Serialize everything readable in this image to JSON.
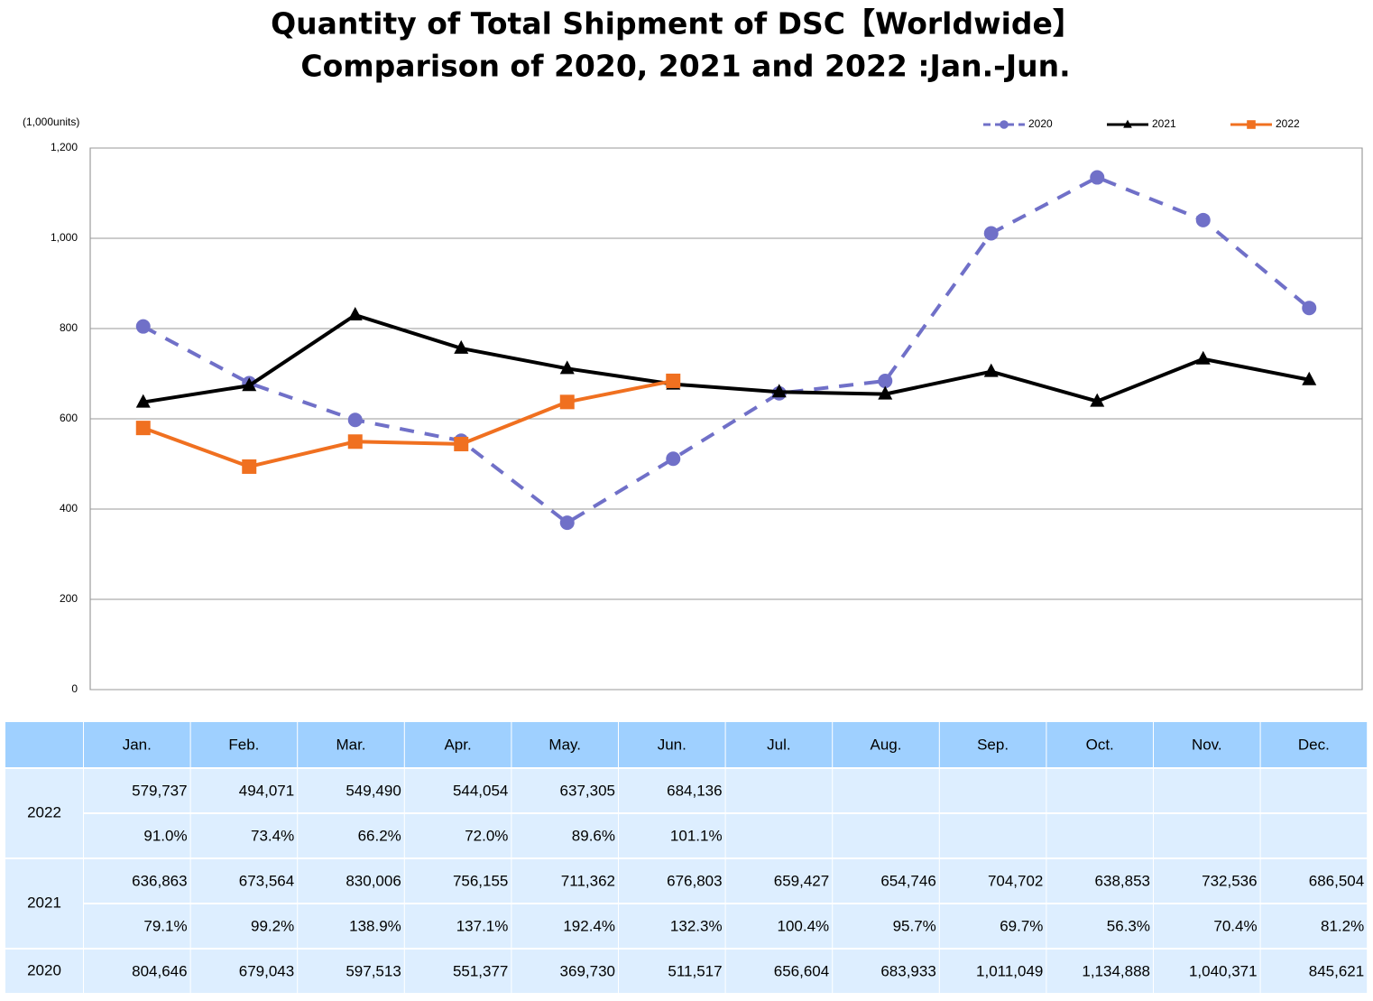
{
  "chart_data": {
    "type": "line",
    "title": "Quantity of Total Shipment of DSC【Worldwide】",
    "subtitle": "Comparison of 2020, 2021 and 2022 :Jan.-Jun.",
    "y_label": "(1,000units)",
    "categories": [
      "Jan.",
      "Feb.",
      "Mar.",
      "Apr.",
      "May.",
      "Jun.",
      "Jul.",
      "Aug.",
      "Sep.",
      "Oct.",
      "Nov.",
      "Dec."
    ],
    "ylim": [
      0,
      1200
    ],
    "yticks": [
      0,
      200,
      400,
      600,
      800,
      {
        "value": 1000,
        "label": "1,000"
      },
      {
        "value": 1200,
        "label": "1,200"
      }
    ],
    "grid": true,
    "legend": "top-right",
    "series": [
      {
        "name": "2020",
        "color": "#7070c8",
        "dash": true,
        "marker": "circle",
        "values": [
          804.646,
          679.043,
          597.513,
          551.377,
          369.73,
          511.517,
          656.604,
          683.933,
          1011.049,
          1134.888,
          1040.371,
          845.621
        ]
      },
      {
        "name": "2021",
        "color": "#000000",
        "marker": "triangle",
        "values": [
          636.863,
          673.564,
          830.006,
          756.155,
          711.362,
          676.803,
          659.427,
          654.746,
          704.702,
          638.853,
          732.536,
          686.504
        ]
      },
      {
        "name": "2022",
        "color": "#f07020",
        "marker": "square",
        "values": [
          579.737,
          494.071,
          549.49,
          544.054,
          637.305,
          684.136,
          null,
          null,
          null,
          null,
          null,
          null
        ]
      }
    ]
  },
  "table": {
    "groups": [
      {
        "label": "2022",
        "rows": [
          [
            "579,737",
            "494,071",
            "549,490",
            "544,054",
            "637,305",
            "684,136"
          ],
          [
            "91.0%",
            "73.4%",
            "66.2%",
            "72.0%",
            "89.6%",
            "101.1%"
          ]
        ]
      },
      {
        "label": "2021",
        "rows": [
          [
            "636,863",
            "673,564",
            "830,006",
            "756,155",
            "711,362",
            "676,803",
            "659,427",
            "654,746",
            "704,702",
            "638,853",
            "732,536",
            "686,504"
          ],
          [
            "79.1%",
            "99.2%",
            "138.9%",
            "137.1%",
            "192.4%",
            "132.3%",
            "100.4%",
            "95.7%",
            "69.7%",
            "56.3%",
            "70.4%",
            "81.2%"
          ]
        ]
      },
      {
        "label": "2020",
        "rows": [
          [
            "804,646",
            "679,043",
            "597,513",
            "551,377",
            "369,730",
            "511,517",
            "656,604",
            "683,933",
            "1,011,049",
            "1,134,888",
            "1,040,371",
            "845,621"
          ]
        ]
      }
    ]
  }
}
